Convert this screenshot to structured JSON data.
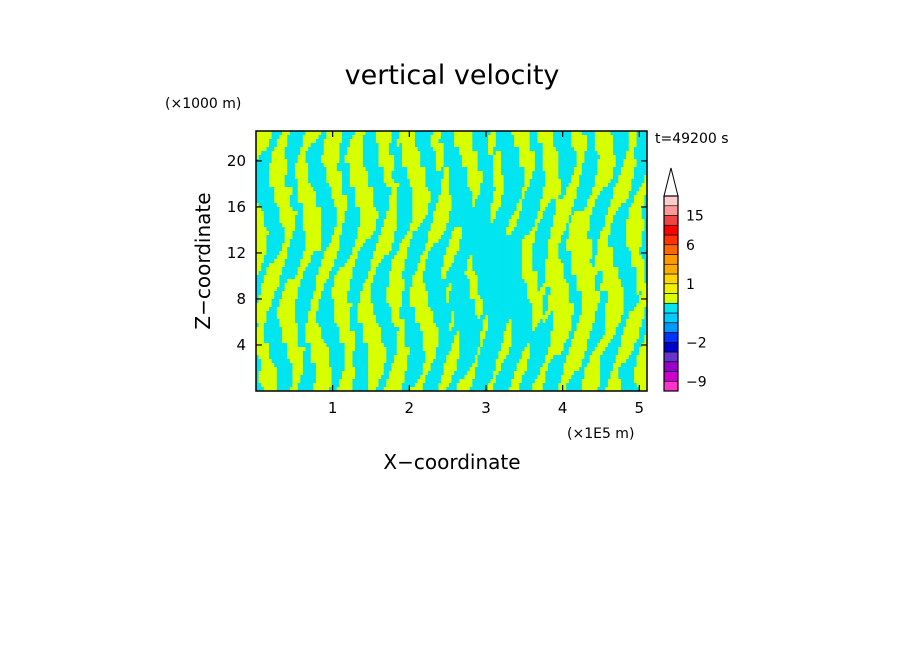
{
  "chart_data": {
    "type": "heatmap",
    "title": "vertical velocity",
    "xlabel": "X−coordinate",
    "ylabel": "Z−coordinate",
    "x_unit": "(×1E5 m)",
    "y_unit": "(×1000 m)",
    "time_label": "t=49200 s",
    "xlim": [
      0,
      5.1
    ],
    "ylim": [
      0,
      22.6
    ],
    "x_ticks": [
      1,
      2,
      3,
      4,
      5
    ],
    "y_ticks": [
      4,
      8,
      12,
      16,
      20
    ],
    "x_tick_labels": [
      "1",
      "2",
      "3",
      "4",
      "5"
    ],
    "y_tick_labels": [
      "4",
      "8",
      "12",
      "16",
      "20"
    ],
    "field_colors": {
      "negative": "#00e5f0",
      "positive": "#d8ff00"
    },
    "colorbar": {
      "levels": [
        -12,
        -9,
        -6,
        -4,
        -3,
        -2,
        -1.5,
        -1,
        -0.5,
        0,
        0.5,
        1,
        1.5,
        2,
        4,
        6,
        9,
        12,
        15,
        18,
        21
      ],
      "colors": [
        "#ff33cc",
        "#cc00cc",
        "#9900cc",
        "#6633cc",
        "#0000cc",
        "#0033ff",
        "#0099ff",
        "#00ccff",
        "#00e5f0",
        "#d8ff00",
        "#f0f000",
        "#ffd700",
        "#ffaa00",
        "#ff9900",
        "#ff6600",
        "#ff3300",
        "#ff0000",
        "#ee4444",
        "#ff9999",
        "#ffcccc"
      ],
      "labels": [
        {
          "value": 15,
          "text": "15"
        },
        {
          "value": 6,
          "text": "6"
        },
        {
          "value": 1,
          "text": "1"
        },
        {
          "value": -2,
          "text": "−2"
        },
        {
          "value": -9,
          "text": "−9"
        }
      ],
      "extend": "max"
    }
  }
}
